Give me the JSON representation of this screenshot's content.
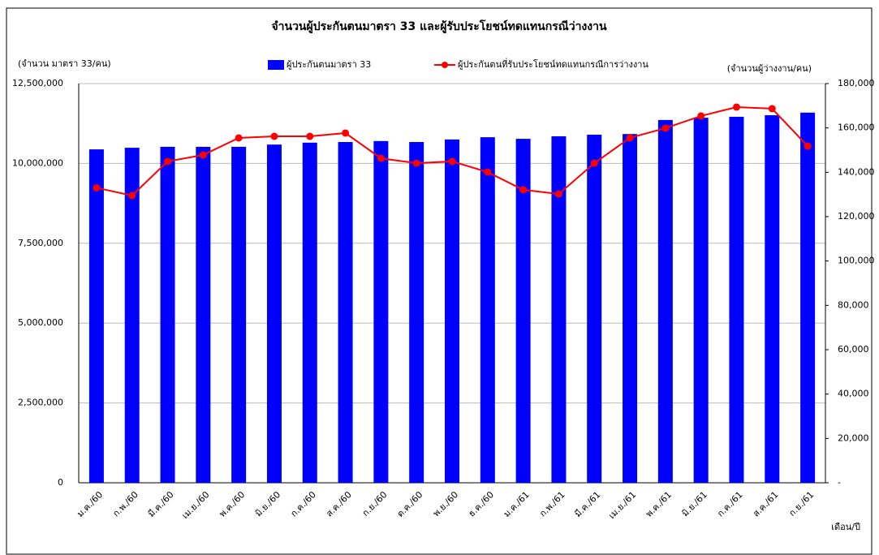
{
  "chart_data": {
    "type": "bar",
    "title": "จำนวนผู้ประกันตนมาตรา 33 และผู้รับประโยชน์ทดแทนกรณีว่างงาน",
    "y_label": "(จำนวน มาตรา 33/คน)",
    "y2_label": "(จำนวนผู้ว่างงาน/คน)",
    "x_label": "เดือน/ปี",
    "categories": [
      "ม.ค./60",
      "ก.พ./60",
      "มี.ค./60",
      "เม.ย./60",
      "พ.ค./60",
      "มิ.ย./60",
      "ก.ค./60",
      "ส.ค./60",
      "ก.ย./60",
      "ต.ค./60",
      "พ.ย./60",
      "ธ.ค./60",
      "ม.ค./61",
      "ก.พ./61",
      "มี.ค./61",
      "เม.ย./61",
      "พ.ค./61",
      "มิ.ย./61",
      "ก.ค./61",
      "ส.ค./61",
      "ก.ย./61"
    ],
    "series": [
      {
        "name": "ผู้ประกันตนมาตรา 33",
        "type": "bar",
        "color": "#0000ff",
        "values": [
          10440000,
          10490000,
          10520000,
          10520000,
          10520000,
          10590000,
          10650000,
          10670000,
          10700000,
          10670000,
          10750000,
          10820000,
          10770000,
          10850000,
          10900000,
          10920000,
          11360000,
          11430000,
          11460000,
          11510000,
          11590000
        ]
      },
      {
        "name": "ผู้ประกันตนที่รับประโยชน์ทดแทนกรณีการว่างงาน",
        "type": "line",
        "axis": "y2",
        "color": "#ff0000",
        "values": [
          133000,
          129500,
          144900,
          147800,
          155500,
          156200,
          156200,
          157700,
          146300,
          144100,
          144900,
          140100,
          132100,
          130200,
          144100,
          155500,
          159900,
          165400,
          169400,
          168700,
          151800
        ]
      }
    ],
    "ylim": [
      0,
      12500000
    ],
    "yticks": [
      0,
      {
        "value": 2500000,
        "label": "2,500,000"
      },
      {
        "value": 5000000,
        "label": "5,000,000"
      },
      {
        "value": 7500000,
        "label": "7,500,000"
      },
      {
        "value": 10000000,
        "label": "10,000,000"
      },
      {
        "value": 12500000,
        "label": "12,500,000"
      }
    ],
    "y2lim": [
      0,
      180000
    ],
    "y2ticks": [
      {
        "value": 0,
        "label": "-"
      },
      {
        "value": 20000,
        "label": "20,000"
      },
      {
        "value": 40000,
        "label": "40,000"
      },
      {
        "value": 60000,
        "label": "60,000"
      },
      {
        "value": 80000,
        "label": "80,000"
      },
      {
        "value": 100000,
        "label": "100,000"
      },
      {
        "value": 120000,
        "label": "120,000"
      },
      {
        "value": 140000,
        "label": "140,000"
      },
      {
        "value": 160000,
        "label": "160,000"
      },
      {
        "value": 180000,
        "label": "180,000"
      }
    ],
    "grid": true
  }
}
